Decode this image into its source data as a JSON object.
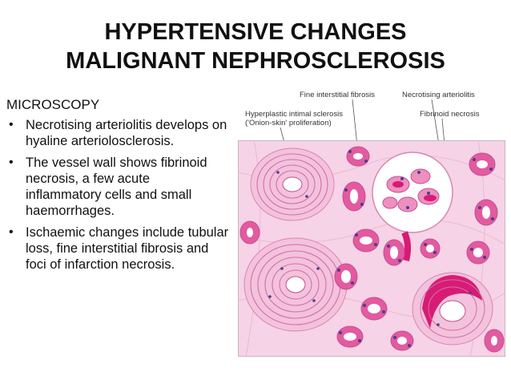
{
  "title": {
    "line1": "HYPERTENSIVE CHANGES",
    "line2": "MALIGNANT NEPHROSCLEROSIS"
  },
  "section_heading": "MICROSCOPY",
  "bullets": [
    {
      "text": "Necrotising arteriolitis develops on hyaline arteriolosclerosis."
    },
    {
      "text": "The vessel wall shows fibrinoid necrosis, a few acute inflammatory cells and small haemorrhages."
    },
    {
      "text": "Ischaemic changes include tubular loss, fine interstitial fibrosis and foci of infarction necrosis."
    }
  ],
  "figure": {
    "labels": {
      "fine_fibrosis": "Fine interstitial fibrosis",
      "necrotising": "Necrotising arteriolitis",
      "hyperplastic": "Hyperplastic intimal sclerosis",
      "onion_skin": "('Onion-skin' proliferation)",
      "fibrinoid": "Fibrinoid necrosis"
    },
    "colors": {
      "background": "#f6d3e6",
      "tubule": "#e35aa0",
      "nucleus": "#4a3f8c",
      "fibrinoid": "#d81b74"
    }
  }
}
